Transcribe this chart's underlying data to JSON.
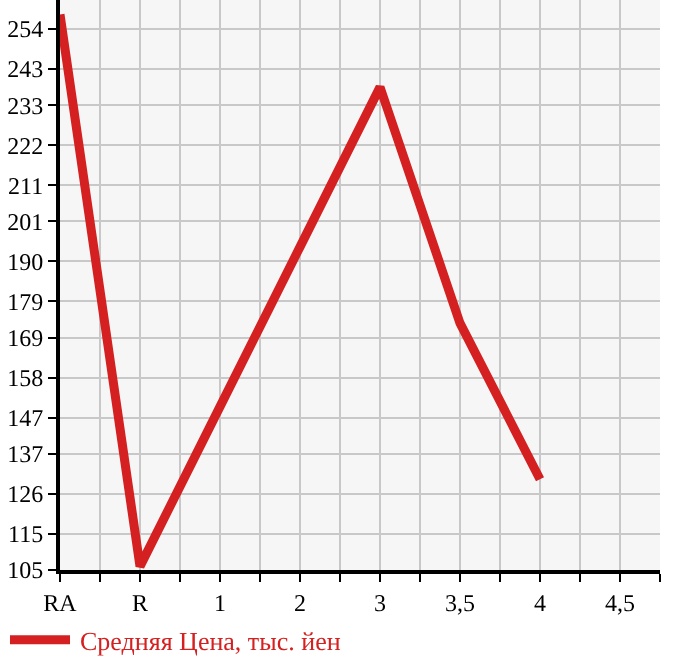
{
  "chart_data": {
    "type": "line",
    "categories": [
      "RA",
      "R",
      "1",
      "2",
      "3",
      "3,5",
      "4",
      "4,5"
    ],
    "series": [
      {
        "name": "Средняя Цена, тыс. йен",
        "color": "#d42020",
        "values": [
          258,
          106,
          150,
          194,
          238,
          173,
          130,
          null
        ]
      }
    ],
    "ylim": [
      105,
      262
    ],
    "yticks": [
      105,
      115,
      126,
      137,
      147,
      158,
      169,
      179,
      190,
      201,
      211,
      222,
      233,
      243,
      254
    ],
    "grid": true,
    "legend": "bottom left",
    "marker": "none",
    "line_style": "solid"
  }
}
